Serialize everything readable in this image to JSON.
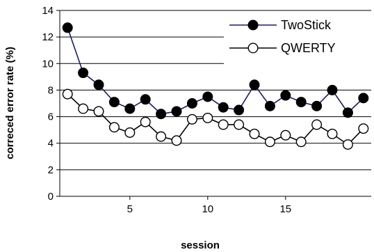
{
  "chart_data": {
    "type": "line",
    "xlabel": "session",
    "ylabel": "correced error rate (%)",
    "x": [
      1,
      2,
      3,
      4,
      5,
      6,
      7,
      8,
      9,
      10,
      11,
      12,
      13,
      14,
      15,
      16,
      17,
      18,
      19,
      20
    ],
    "xlim": [
      0.5,
      20.5
    ],
    "xticks": [
      5,
      10,
      15
    ],
    "ylim": [
      0,
      14
    ],
    "yticks": [
      0,
      2,
      4,
      6,
      8,
      10,
      12,
      14
    ],
    "grid": "horizontal",
    "legend_position": "top-right",
    "series": [
      {
        "name": "TwoStick",
        "line_color": "#1a1a6e",
        "marker": "filled-circle",
        "marker_fill": "#000000",
        "values": [
          12.7,
          9.3,
          8.4,
          7.1,
          6.6,
          7.3,
          6.2,
          6.4,
          7.0,
          7.5,
          6.7,
          6.5,
          8.4,
          6.8,
          7.6,
          7.1,
          6.8,
          8.0,
          6.3,
          7.4
        ]
      },
      {
        "name": "QWERTY",
        "line_color": "#000000",
        "marker": "open-circle",
        "marker_fill": "#ffffff",
        "values": [
          7.7,
          6.6,
          6.4,
          5.2,
          4.8,
          5.6,
          4.5,
          4.2,
          5.8,
          5.9,
          5.4,
          5.4,
          4.7,
          4.1,
          4.6,
          4.1,
          5.4,
          4.7,
          3.9,
          5.1
        ]
      }
    ]
  }
}
